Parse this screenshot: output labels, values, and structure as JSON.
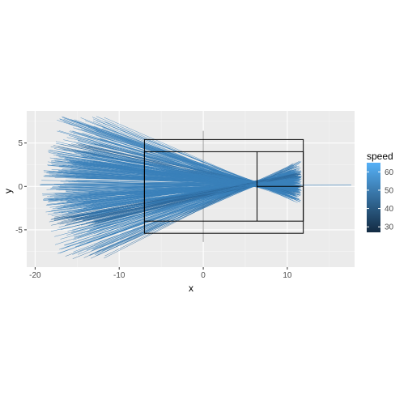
{
  "chart_data": {
    "type": "line",
    "xlabel": "x",
    "ylabel": "y",
    "xlim": [
      -21,
      18
    ],
    "ylim": [
      -9.3,
      8.7
    ],
    "x_ticks": [
      -20,
      -10,
      0,
      10
    ],
    "x_tick_labels": [
      "-20",
      "-10",
      "0",
      "10"
    ],
    "y_ticks": [
      -5,
      0,
      5
    ],
    "y_tick_labels": [
      "-5",
      "0",
      "5"
    ],
    "grid": true,
    "panel_background": "#EBEBEB",
    "line_color": "#3A80BA",
    "convergence_point": [
      6.0,
      0.3
    ],
    "court_lines": {
      "outer": [
        [
          -7.0,
          -5.4
        ],
        [
          11.9,
          5.4
        ]
      ],
      "inner": [
        [
          -7.0,
          -4.0
        ],
        [
          11.9,
          4.0
        ]
      ],
      "service_line_x": 6.4,
      "center_line": [
        [
          6.4,
          0.0
        ],
        [
          11.9,
          0.0
        ]
      ],
      "net": [
        [
          0,
          -6.4
        ],
        [
          0,
          6.4
        ]
      ]
    },
    "outlier_line": [
      [
        3.0,
        0.1
      ],
      [
        17.6,
        0.15
      ]
    ],
    "legend": {
      "title": "speed",
      "position": "right",
      "breaks": [
        30,
        40,
        50,
        60
      ],
      "labels": [
        "30",
        "40",
        "50",
        "60"
      ],
      "range": [
        27,
        65
      ],
      "color_low": "#132B43",
      "color_high": "#56B1F7"
    }
  }
}
